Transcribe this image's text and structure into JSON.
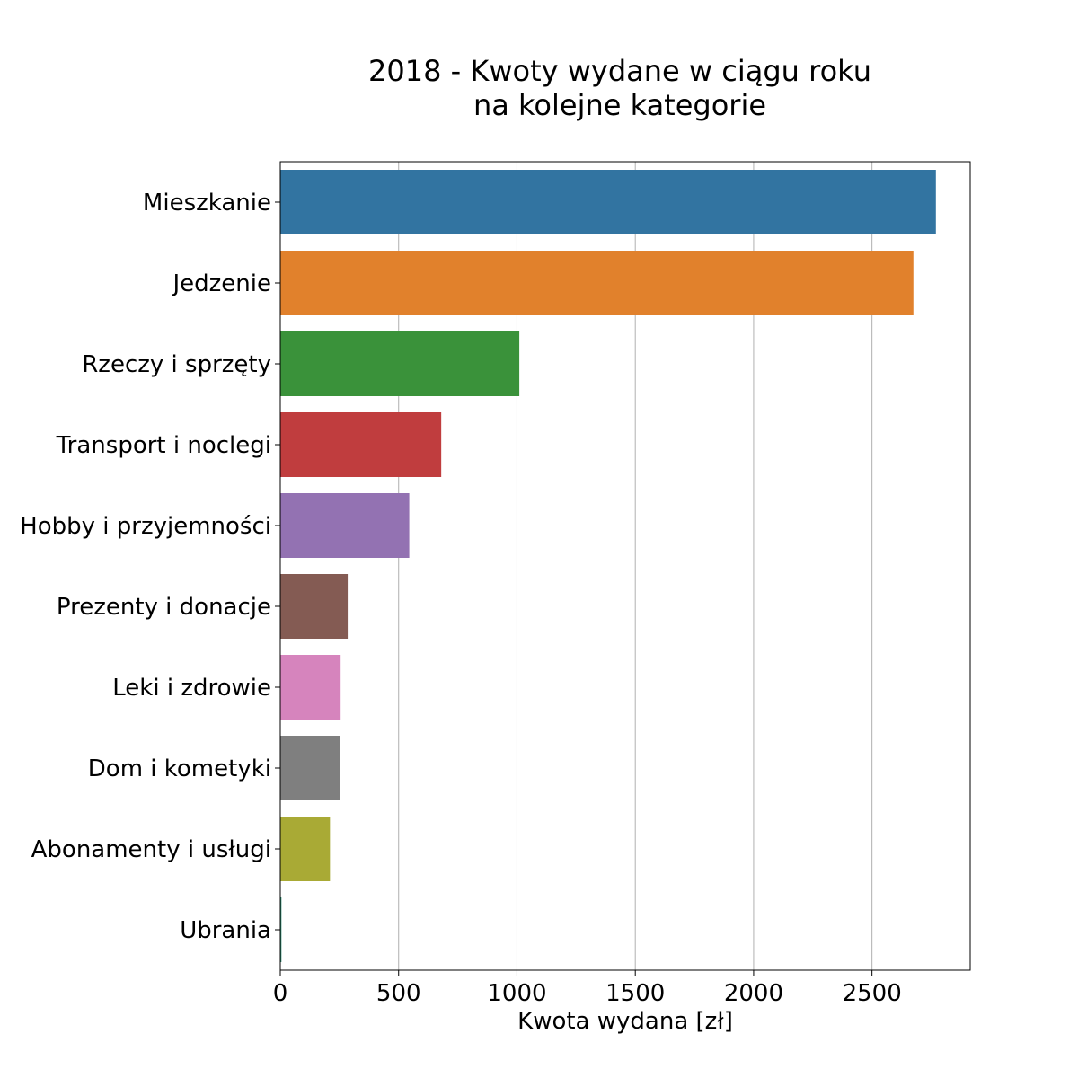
{
  "chart_data": {
    "type": "bar",
    "orientation": "horizontal",
    "title_lines": [
      "2018 - Kwoty wydane w ciągu roku",
      "na kolejne kategorie"
    ],
    "xlabel": "Kwota wydana [zł]",
    "ylabel": "",
    "xlim": [
      0,
      2915
    ],
    "xticks": [
      0,
      500,
      1000,
      1500,
      2000,
      2500
    ],
    "grid": "vertical",
    "categories": [
      "Mieszkanie",
      "Jedzenie",
      "Rzeczy i sprzęty",
      "Transport i noclegi",
      "Hobby i przyjemności",
      "Prezenty i donacje",
      "Leki i zdrowie",
      "Dom i kometyki",
      "Abonamenty i usługi",
      "Ubrania"
    ],
    "values": [
      2770,
      2675,
      1010,
      680,
      545,
      285,
      255,
      252,
      210,
      5
    ],
    "colors": [
      "#3274a1",
      "#e1812c",
      "#3a923a",
      "#c03d3e",
      "#9372b2",
      "#845b53",
      "#d684bd",
      "#7f7f7f",
      "#a9aa35",
      "#2e8b70"
    ]
  }
}
